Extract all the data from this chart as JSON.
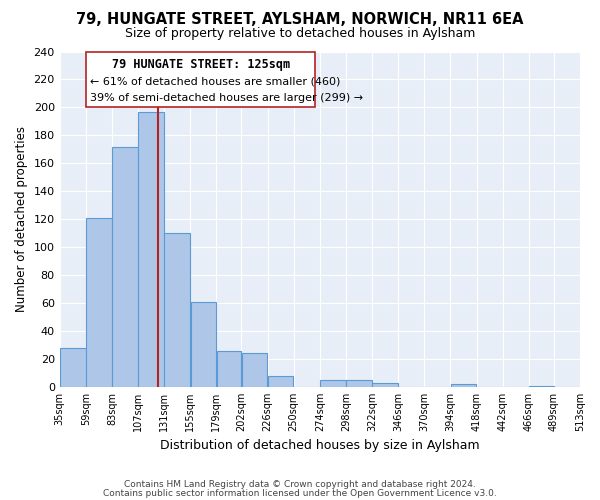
{
  "title": "79, HUNGATE STREET, AYLSHAM, NORWICH, NR11 6EA",
  "subtitle": "Size of property relative to detached houses in Aylsham",
  "xlabel": "Distribution of detached houses by size in Aylsham",
  "ylabel": "Number of detached properties",
  "bar_left_edges": [
    35,
    59,
    83,
    107,
    131,
    155,
    179,
    202,
    226,
    250,
    274,
    298,
    322,
    346,
    370,
    394,
    418,
    442,
    466,
    489
  ],
  "bar_widths": [
    24,
    24,
    24,
    24,
    24,
    24,
    23,
    24,
    24,
    24,
    24,
    24,
    24,
    24,
    24,
    24,
    24,
    24,
    23,
    24
  ],
  "bar_heights": [
    28,
    121,
    172,
    197,
    110,
    61,
    26,
    24,
    8,
    0,
    5,
    5,
    3,
    0,
    0,
    2,
    0,
    0,
    1,
    0
  ],
  "bar_color": "#AEC6E8",
  "bar_edgecolor": "#5B9BD5",
  "tick_labels": [
    "35sqm",
    "59sqm",
    "83sqm",
    "107sqm",
    "131sqm",
    "155sqm",
    "179sqm",
    "202sqm",
    "226sqm",
    "250sqm",
    "274sqm",
    "298sqm",
    "322sqm",
    "346sqm",
    "370sqm",
    "394sqm",
    "418sqm",
    "442sqm",
    "466sqm",
    "489sqm",
    "513sqm"
  ],
  "ylim": [
    0,
    240
  ],
  "yticks": [
    0,
    20,
    40,
    60,
    80,
    100,
    120,
    140,
    160,
    180,
    200,
    220,
    240
  ],
  "property_size": 125,
  "vline_color": "#B22222",
  "annotation_title": "79 HUNGATE STREET: 125sqm",
  "annotation_line1": "← 61% of detached houses are smaller (460)",
  "annotation_line2": "39% of semi-detached houses are larger (299) →",
  "annotation_box_color": "#ffffff",
  "annotation_box_edgecolor": "#B22222",
  "bg_color": "#E8EEF7",
  "footer1": "Contains HM Land Registry data © Crown copyright and database right 2024.",
  "footer2": "Contains public sector information licensed under the Open Government Licence v3.0."
}
